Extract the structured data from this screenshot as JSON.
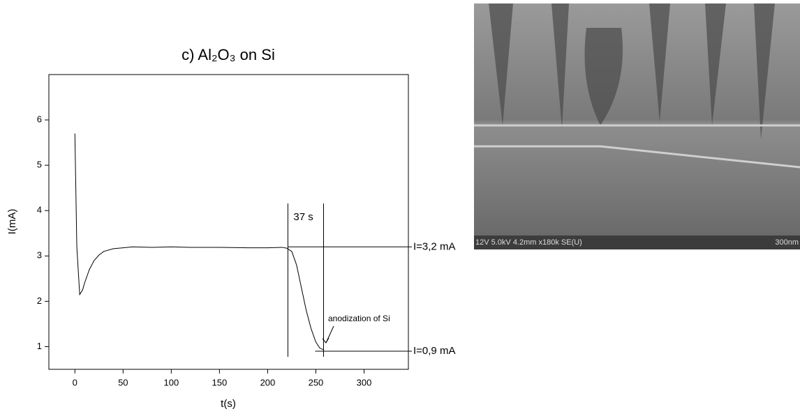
{
  "chart_data": {
    "type": "line",
    "title": "c) Al₂O₃ on Si",
    "x_label": "t(s)",
    "y_label": "I(mA)",
    "x": [
      0,
      2,
      5,
      8,
      10,
      15,
      20,
      25,
      30,
      40,
      50,
      60,
      80,
      100,
      120,
      150,
      180,
      200,
      215,
      220,
      225,
      230,
      235,
      240,
      245,
      250,
      254,
      258
    ],
    "values": [
      5.7,
      3.2,
      2.15,
      2.25,
      2.4,
      2.7,
      2.9,
      3.02,
      3.1,
      3.16,
      3.18,
      3.2,
      3.19,
      3.2,
      3.19,
      3.19,
      3.18,
      3.18,
      3.19,
      3.17,
      3.1,
      2.8,
      2.3,
      1.8,
      1.4,
      1.1,
      0.97,
      0.93
    ],
    "color": "#000000",
    "xlim": [
      -27,
      346
    ],
    "ylim": [
      0.5,
      7
    ],
    "xticks": [
      0,
      50,
      100,
      150,
      200,
      250,
      300
    ],
    "yticks": [
      1,
      2,
      3,
      4,
      5,
      6
    ],
    "reference_lines": [
      {
        "label": "I=3,2 mA",
        "y": 3.2
      },
      {
        "label": "I=0,9 mA",
        "y": 0.9
      }
    ],
    "interval": {
      "label": "37 s",
      "x": [
        221,
        258
      ]
    },
    "annotation": "anodization of Si",
    "image": {
      "info": "12V 5.0kV 4.2mm x180k SE(U)",
      "scale": "300nm"
    }
  }
}
